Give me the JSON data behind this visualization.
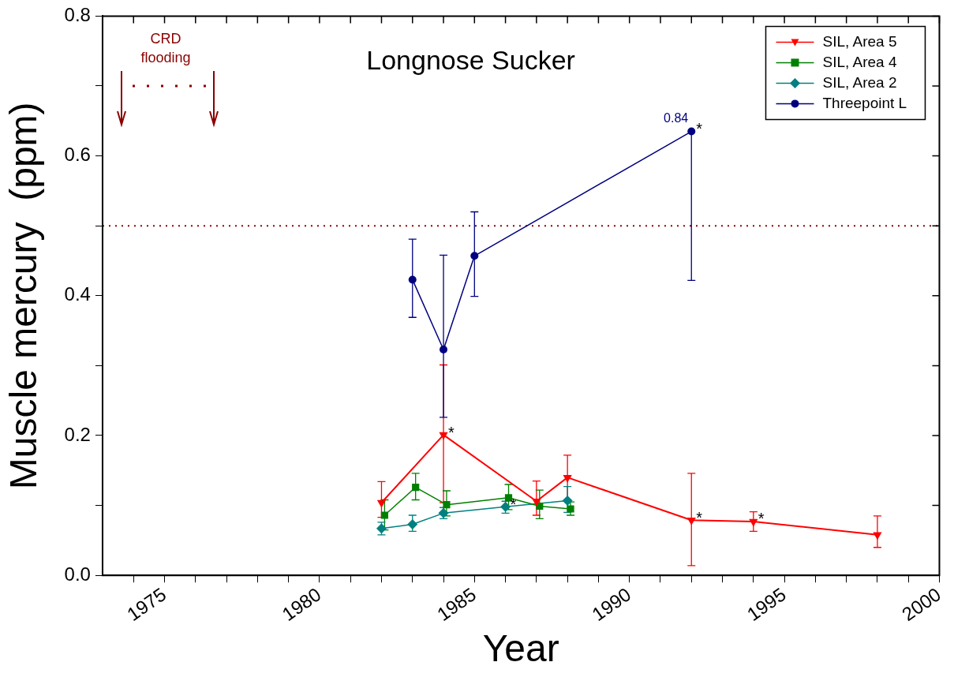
{
  "chart_data": {
    "type": "line",
    "title": "Longnose Sucker",
    "xlabel": "Year",
    "ylabel": "Muscle mercury  (ppm)",
    "xlim": [
      1973,
      2000
    ],
    "xticks": [
      {
        "value": 1974,
        "label": null
      },
      1975,
      {
        "value": 1976,
        "label": null
      },
      {
        "value": 1977,
        "label": null
      },
      {
        "value": 1978,
        "label": null
      },
      {
        "value": 1979,
        "label": null
      },
      1980,
      {
        "value": 1981,
        "label": null
      },
      {
        "value": 1982,
        "label": null
      },
      {
        "value": 1983,
        "label": null
      },
      {
        "value": 1984,
        "label": null
      },
      1985,
      {
        "value": 1986,
        "label": null
      },
      {
        "value": 1987,
        "label": null
      },
      {
        "value": 1988,
        "label": null
      },
      {
        "value": 1989,
        "label": null
      },
      1990,
      {
        "value": 1991,
        "label": null
      },
      {
        "value": 1992,
        "label": null
      },
      {
        "value": 1993,
        "label": null
      },
      {
        "value": 1994,
        "label": null
      },
      1995,
      {
        "value": 1996,
        "label": null
      },
      {
        "value": 1997,
        "label": null
      },
      {
        "value": 1998,
        "label": null
      },
      {
        "value": 1999,
        "label": null
      },
      2000
    ],
    "ylim": [
      0,
      0.8
    ],
    "yticks": [
      {
        "value": 0,
        "label": "0.0"
      },
      {
        "value": 0.1,
        "label": null
      },
      0.2,
      {
        "value": 0.3,
        "label": null
      },
      0.4,
      {
        "value": 0.5,
        "label": null
      },
      0.6,
      {
        "value": 0.7,
        "label": null
      },
      0.8
    ],
    "grid": false,
    "legend": "top right",
    "line_style": "solid",
    "series": [
      {
        "name": "SIL, Area 5",
        "color": "#ff0000",
        "marker": "triangle",
        "x": [
          1982,
          1984,
          1987,
          1988,
          1992,
          1994,
          1998
        ],
        "values": [
          0.104,
          0.201,
          0.106,
          0.14,
          0.079,
          0.077,
          0.058
        ],
        "errors": [
          [
            0.083,
            0.134
          ],
          [
            0.104,
            0.301
          ],
          [
            0.086,
            0.135
          ],
          [
            0.108,
            0.172
          ],
          [
            0.014,
            0.146
          ],
          [
            0.063,
            0.091
          ],
          [
            0.04,
            0.085
          ]
        ]
      },
      {
        "name": "SIL, Area 4",
        "color": "#008000",
        "marker": "square",
        "x": [
          1982.1,
          1983.1,
          1984.1,
          1986.1,
          1987.1,
          1988.1
        ],
        "values": [
          0.086,
          0.126,
          0.101,
          0.111,
          0.099,
          0.095
        ],
        "errors": [
          [
            0.065,
            0.108
          ],
          [
            0.108,
            0.146
          ],
          [
            0.085,
            0.121
          ],
          [
            0.094,
            0.13
          ],
          [
            0.081,
            0.122
          ],
          [
            0.086,
            0.105
          ]
        ]
      },
      {
        "name": "SIL, Area 2",
        "color": "#008080",
        "marker": "diamond",
        "x": [
          1982,
          1983,
          1984,
          1986,
          1988
        ],
        "values": [
          0.067,
          0.073,
          0.089,
          0.098,
          0.107
        ],
        "errors": [
          [
            0.058,
            0.076
          ],
          [
            0.063,
            0.086
          ],
          [
            0.081,
            0.097
          ],
          [
            0.089,
            0.106
          ],
          [
            0.09,
            0.127
          ]
        ]
      },
      {
        "name": "Threepoint L",
        "color": "#000080",
        "marker": "circle",
        "x": [
          1983,
          1984,
          1985,
          1992
        ],
        "values": [
          0.423,
          0.323,
          0.457,
          0.635
        ],
        "errors": [
          [
            0.369,
            0.481
          ],
          [
            0.226,
            0.458
          ],
          [
            0.399,
            0.52
          ],
          [
            0.422,
            0.635
          ]
        ]
      }
    ],
    "ref_lines": [
      {
        "axis": "y",
        "value": 0.5,
        "label": null,
        "color": "#8b0000",
        "line_style": "dotted"
      }
    ],
    "annotations": [
      "CRD flooding",
      {
        "text": "0.84",
        "x": 1992,
        "y": 0.635
      },
      {
        "text": "*",
        "x": 1992,
        "y": 0.635
      },
      {
        "text": "*",
        "x": 1984,
        "y": 0.201
      },
      {
        "text": "*",
        "x": 1986,
        "y": 0.098
      },
      {
        "text": "*",
        "x": 1992,
        "y": 0.079
      },
      {
        "text": "*",
        "x": 1994,
        "y": 0.077
      }
    ]
  }
}
